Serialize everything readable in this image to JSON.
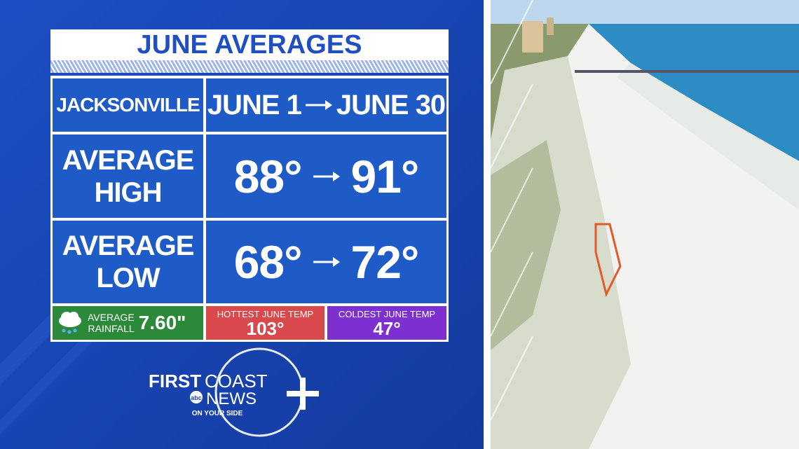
{
  "header": {
    "title": "JUNE AVERAGES"
  },
  "table": {
    "location": "JACKSONVILLE",
    "start": "JUNE 1",
    "end": "JUNE 30",
    "rows": [
      {
        "label": [
          "AVERAGE",
          "HIGH"
        ],
        "start": "88°",
        "end": "91°"
      },
      {
        "label": [
          "AVERAGE",
          "LOW"
        ],
        "start": "68°",
        "end": "72°"
      }
    ]
  },
  "stats": {
    "rainfall": {
      "label": [
        "AVERAGE",
        "RAINFALL"
      ],
      "value": "7.60\""
    },
    "hottest": {
      "label": "HOTTEST JUNE TEMP",
      "value": "103°"
    },
    "coldest": {
      "label": "COLDEST JUNE TEMP",
      "value": "47°"
    }
  },
  "logo": {
    "first": "FIRST",
    "coast": "COAST",
    "network": "abc",
    "news": "NEWS",
    "tagline": "ON YOUR SIDE"
  }
}
